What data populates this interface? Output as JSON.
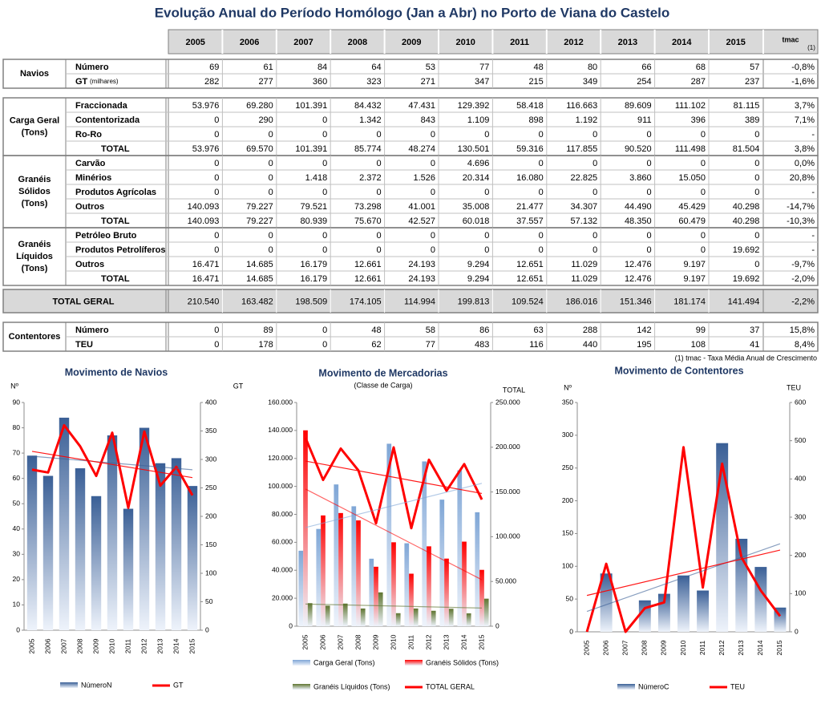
{
  "table": {
    "title": "Evolução Anual do Período Homólogo (Jan a Abr) no Porto de Viana do Castelo",
    "header": {
      "years": [
        "2005",
        "2006",
        "2007",
        "2008",
        "2009",
        "2010",
        "2011",
        "2012",
        "2013",
        "2014",
        "2015"
      ],
      "tmac": "tmac",
      "tmac_note": "(1)"
    },
    "sections": [
      {
        "label_lines": [
          "Navios"
        ],
        "rows": [
          {
            "label": "Número",
            "values": [
              "69",
              "61",
              "84",
              "64",
              "53",
              "77",
              "48",
              "80",
              "66",
              "68",
              "57"
            ],
            "tmac": "-0,8%"
          },
          {
            "label": "GT",
            "label_note": "(milhares)",
            "values": [
              "282",
              "277",
              "360",
              "323",
              "271",
              "347",
              "215",
              "349",
              "254",
              "287",
              "237"
            ],
            "tmac": "-1,6%"
          }
        ]
      },
      {
        "label_lines": [
          "Carga Geral",
          "(Tons)"
        ],
        "rows": [
          {
            "label": "Fraccionada",
            "values": [
              "53.976",
              "69.280",
              "101.391",
              "84.432",
              "47.431",
              "129.392",
              "58.418",
              "116.663",
              "89.609",
              "111.102",
              "81.115"
            ],
            "tmac": "3,7%"
          },
          {
            "label": "Contentorizada",
            "values": [
              "0",
              "290",
              "0",
              "1.342",
              "843",
              "1.109",
              "898",
              "1.192",
              "911",
              "396",
              "389"
            ],
            "tmac": "7,1%"
          },
          {
            "label": "Ro-Ro",
            "values": [
              "0",
              "0",
              "0",
              "0",
              "0",
              "0",
              "0",
              "0",
              "0",
              "0",
              "0"
            ],
            "tmac": "-"
          },
          {
            "label": "TOTAL",
            "values": [
              "53.976",
              "69.570",
              "101.391",
              "85.774",
              "48.274",
              "130.501",
              "59.316",
              "117.855",
              "90.520",
              "111.498",
              "81.504"
            ],
            "tmac": "3,8%"
          }
        ]
      },
      {
        "label_lines": [
          "Granéis",
          "Sólidos",
          "(Tons)"
        ],
        "rows": [
          {
            "label": "Carvão",
            "values": [
              "0",
              "0",
              "0",
              "0",
              "0",
              "4.696",
              "0",
              "0",
              "0",
              "0",
              "0"
            ],
            "tmac": "0,0%"
          },
          {
            "label": "Minérios",
            "values": [
              "0",
              "0",
              "1.418",
              "2.372",
              "1.526",
              "20.314",
              "16.080",
              "22.825",
              "3.860",
              "15.050",
              "0"
            ],
            "tmac": "20,8%"
          },
          {
            "label": "Produtos Agrícolas",
            "values": [
              "0",
              "0",
              "0",
              "0",
              "0",
              "0",
              "0",
              "0",
              "0",
              "0",
              "0"
            ],
            "tmac": "-"
          },
          {
            "label": "Outros",
            "values": [
              "140.093",
              "79.227",
              "79.521",
              "73.298",
              "41.001",
              "35.008",
              "21.477",
              "34.307",
              "44.490",
              "45.429",
              "40.298"
            ],
            "tmac": "-14,7%"
          },
          {
            "label": "TOTAL",
            "values": [
              "140.093",
              "79.227",
              "80.939",
              "75.670",
              "42.527",
              "60.018",
              "37.557",
              "57.132",
              "48.350",
              "60.479",
              "40.298"
            ],
            "tmac": "-10,3%"
          }
        ]
      },
      {
        "label_lines": [
          "Granéis",
          "Líquidos",
          "(Tons)"
        ],
        "rows": [
          {
            "label": "Petróleo Bruto",
            "values": [
              "0",
              "0",
              "0",
              "0",
              "0",
              "0",
              "0",
              "0",
              "0",
              "0",
              "0"
            ],
            "tmac": "-"
          },
          {
            "label": "Produtos Petrolíferos",
            "values": [
              "0",
              "0",
              "0",
              "0",
              "0",
              "0",
              "0",
              "0",
              "0",
              "0",
              "19.692"
            ],
            "tmac": "-"
          },
          {
            "label": "Outros",
            "values": [
              "16.471",
              "14.685",
              "16.179",
              "12.661",
              "24.193",
              "9.294",
              "12.651",
              "11.029",
              "12.476",
              "9.197",
              "0"
            ],
            "tmac": "-9,7%"
          },
          {
            "label": "TOTAL",
            "values": [
              "16.471",
              "14.685",
              "16.179",
              "12.661",
              "24.193",
              "9.294",
              "12.651",
              "11.029",
              "12.476",
              "9.197",
              "19.692"
            ],
            "tmac": "-2,0%"
          }
        ]
      },
      {
        "label_lines": [
          "Contentores"
        ],
        "rows": [
          {
            "label": "Número",
            "values": [
              "0",
              "89",
              "0",
              "48",
              "58",
              "86",
              "63",
              "288",
              "142",
              "99",
              "37"
            ],
            "tmac": "15,8%"
          },
          {
            "label": "TEU",
            "values": [
              "0",
              "178",
              "0",
              "62",
              "77",
              "483",
              "116",
              "440",
              "195",
              "108",
              "41"
            ],
            "tmac": "8,4%"
          }
        ]
      }
    ],
    "total_geral": {
      "label": "TOTAL GERAL",
      "values": [
        "210.540",
        "163.482",
        "198.509",
        "174.105",
        "114.994",
        "199.813",
        "109.524",
        "186.016",
        "151.346",
        "181.174",
        "141.494"
      ],
      "tmac": "-2,2%"
    },
    "footnote": "(1) tmac - Taxa Média Anual de Crescimento"
  },
  "chart_data": [
    {
      "type": "bar",
      "title": "Movimento de Navios",
      "y_label": "Nº",
      "y2_label": "GT",
      "categories": [
        "2005",
        "2006",
        "2007",
        "2008",
        "2009",
        "2010",
        "2011",
        "2012",
        "2013",
        "2014",
        "2015"
      ],
      "ylim": [
        0,
        90
      ],
      "yticks": [
        0,
        10,
        20,
        30,
        40,
        50,
        60,
        70,
        80,
        90
      ],
      "y2lim": [
        0,
        400
      ],
      "y2ticks": [
        0,
        50,
        100,
        150,
        200,
        250,
        300,
        350,
        400
      ],
      "trendlines": true,
      "series": [
        {
          "name": "NúmeroN",
          "color": "#3a5f96",
          "values": [
            69,
            61,
            84,
            64,
            53,
            77,
            48,
            80,
            66,
            68,
            57
          ]
        },
        {
          "name": "GT",
          "color": "#ff0000",
          "type": "line",
          "axis": "y2",
          "values": [
            282,
            277,
            360,
            323,
            271,
            347,
            215,
            349,
            254,
            287,
            237
          ]
        }
      ]
    },
    {
      "type": "bar",
      "title": "Movimento  de Mercadorias",
      "subtitle": "(Classe de Carga)",
      "y2_label": "TOTAL",
      "categories": [
        "2005",
        "2006",
        "2007",
        "2008",
        "2009",
        "2010",
        "2011",
        "2012",
        "2013",
        "2014",
        "2015"
      ],
      "ylim": [
        0,
        160000
      ],
      "yticks": [
        0,
        {
          "value": 20000,
          "label": "20.000"
        },
        {
          "value": 40000,
          "label": "40.000"
        },
        {
          "value": 60000,
          "label": "60.000"
        },
        {
          "value": 80000,
          "label": "80.000"
        },
        {
          "value": 100000,
          "label": "100.000"
        },
        {
          "value": 120000,
          "label": "120.000"
        },
        {
          "value": 140000,
          "label": "140.000"
        },
        {
          "value": 160000,
          "label": "160.000"
        }
      ],
      "y2lim": [
        0,
        250000
      ],
      "y2ticks": [
        0,
        {
          "value": 50000,
          "label": "50.000"
        },
        {
          "value": 100000,
          "label": "100.000"
        },
        {
          "value": 150000,
          "label": "150.000"
        },
        {
          "value": 200000,
          "label": "200.000"
        },
        {
          "value": 250000,
          "label": "250.000"
        }
      ],
      "trendlines": true,
      "series": [
        {
          "name": "Carga Geral (Tons)",
          "color": "#7fa6d6",
          "values": [
            53976,
            69570,
            101391,
            85774,
            48274,
            130501,
            59316,
            117855,
            90520,
            111498,
            81504
          ]
        },
        {
          "name": "Granéis Sólidos (Tons)",
          "color": "#ff0000",
          "values": [
            140093,
            79227,
            80939,
            75670,
            42527,
            60018,
            37557,
            57132,
            48350,
            60479,
            40298
          ]
        },
        {
          "name": "Granéis Líquidos (Tons)",
          "color": "#5f7530",
          "values": [
            16471,
            14685,
            16179,
            12661,
            24193,
            9294,
            12651,
            11029,
            12476,
            9197,
            19692
          ]
        },
        {
          "name": "TOTAL GERAL",
          "color": "#ff0000",
          "type": "line",
          "axis": "y2",
          "values": [
            210540,
            163482,
            198509,
            174105,
            114994,
            199813,
            109524,
            186016,
            151346,
            181174,
            141494
          ]
        }
      ]
    },
    {
      "type": "bar",
      "title": "Movimento de Contentores",
      "y_label": "Nº",
      "y2_label": "TEU",
      "categories": [
        "2005",
        "2006",
        "2007",
        "2008",
        "2009",
        "2010",
        "2011",
        "2012",
        "2013",
        "2014",
        "2015"
      ],
      "ylim": [
        0,
        350
      ],
      "yticks": [
        0,
        50,
        100,
        150,
        200,
        250,
        300,
        350
      ],
      "y2lim": [
        0,
        600
      ],
      "y2ticks": [
        0,
        100,
        200,
        300,
        400,
        500,
        600
      ],
      "trendlines": true,
      "series": [
        {
          "name": "NúmeroC",
          "color": "#3a5f96",
          "values": [
            0,
            89,
            0,
            48,
            58,
            86,
            63,
            288,
            142,
            99,
            37
          ]
        },
        {
          "name": "TEU",
          "color": "#ff0000",
          "type": "line",
          "axis": "y2",
          "values": [
            0,
            178,
            0,
            62,
            77,
            483,
            116,
            440,
            195,
            108,
            41
          ]
        }
      ]
    }
  ]
}
